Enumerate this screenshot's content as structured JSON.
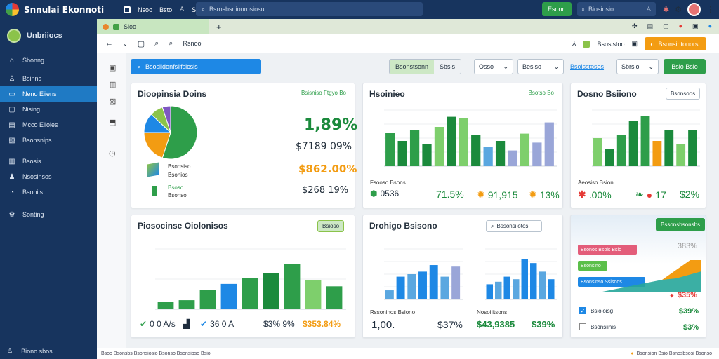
{
  "topbar": {
    "brand": "Snnulai Ekonnoti",
    "nav": [
      "Nsoo",
      "Bsto",
      "Ssbo"
    ],
    "search_placeholder": "Bsrosbsnionrosiosu",
    "green_button": "Esonn",
    "search2": "Biosiosio"
  },
  "sidebar": {
    "user": "Unbriiocs",
    "items": [
      {
        "label": "Sbonng",
        "icon": "home-icon"
      },
      {
        "label": "Bsinns",
        "icon": "user-icon"
      },
      {
        "label": "Neno Eiiens",
        "icon": "folder-icon",
        "active": true
      },
      {
        "label": "Nising",
        "icon": "chat-icon"
      },
      {
        "label": "Mcco Eiioies",
        "icon": "calendar-icon"
      },
      {
        "label": "Bsonsnips",
        "icon": "doc-icon"
      },
      {
        "label": "Bsosis",
        "icon": "chart-icon"
      },
      {
        "label": "Nsosinsos",
        "icon": "users-icon"
      },
      {
        "label": "Bsoniis",
        "icon": "bell-icon"
      },
      {
        "label": "Sonting",
        "icon": "gear-icon"
      }
    ],
    "footer": "Biono sbos"
  },
  "tabs": {
    "active": "Sioo"
  },
  "address": {
    "title": "Rsnoo",
    "ext_label": "Bsosistoo",
    "orange": "Bsonsintonors"
  },
  "toolbar": {
    "search": "Bsosiidonfsiifsicsis",
    "seg": [
      "Bsonstsonn",
      "Sbsis"
    ],
    "dd1": "Osso",
    "dd2": "Besiso",
    "link": "Bsoisstosos",
    "dd3": "Sbrsio",
    "go": "Bsio Bsio"
  },
  "cards": {
    "c1": {
      "title": "Dioopinsia Doins",
      "link": "Bsisniso Ftgyo Bo",
      "big1": "1,89%",
      "big2": "$7189 09%",
      "big3": "$862.00%",
      "big4": "$268 19%",
      "leg1a": "Bsonsiso",
      "leg1b": "Bsonios",
      "leg2a": "Bsoso",
      "leg2b": "Bsonso"
    },
    "c2": {
      "title": "Hsoinieo",
      "link": "Bsotso Bo",
      "f1": "0536",
      "f1label": "Fsooso Bsons",
      "f2": "71.5%",
      "f3": "91,915",
      "f4": "13%"
    },
    "c3": {
      "title": "Dosno Bsiiono",
      "btn": "Bsonsoos",
      "f1label": "Aeosiso Bsion",
      "f1": ".00%",
      "f2": "17",
      "f3": "$2%"
    },
    "c4": {
      "title": "Piosocinse Oiolonisos",
      "btn": "Bsioso"
    },
    "c5": {
      "title": "Drohigo Bsisono",
      "btn": "Bssonsiiotos",
      "f1label": "Rssoninos Bsiono",
      "f1": "1,00.",
      "f2": "$37%",
      "f3label": "Nosoiiitsons",
      "f3": "$43,9385",
      "f4": "$39%"
    },
    "c6": {
      "btn": "Bssonsbsonsbs",
      "p1": "Bsonos Bsois Bsio",
      "p2": "Bsonsino",
      "p3": "Bsonsinso Ssisoos",
      "v1": "383%",
      "v2": "$35%",
      "r1": "Bsioioisg",
      "r1v": "$39%",
      "r2": "Bsonsiinis",
      "r2v": "$3%"
    },
    "c4foot": {
      "a": "0 0 A/s",
      "b": "36 0 A",
      "c": "$3% 9%",
      "d": "$353.84%"
    }
  },
  "bottom": {
    "left": "Bsoo Bsonsbs Bsonsiosio Bsonso  Bsonsibso  Bsio",
    "right": "Bsonsion  Bsio Bsnosbsosi Bsonso"
  },
  "chart_data": [
    {
      "type": "pie",
      "values": [
        55,
        20,
        12,
        8,
        5
      ],
      "colors": [
        "#2e9e4a",
        "#f39c12",
        "#1e88e5",
        "#8bc34a",
        "#7e57c2"
      ]
    },
    {
      "type": "bar",
      "ylim": [
        0,
        100
      ],
      "values": [
        60,
        45,
        65,
        40,
        70,
        88,
        85,
        55,
        35,
        45,
        28,
        58,
        42,
        78
      ],
      "colors": [
        "#2e9e4a",
        "#1b8a3c",
        "#2e9e4a",
        "#1b8a3c",
        "#7ecf6c",
        "#1b8a3c",
        "#7ecf6c",
        "#1b8a3c",
        "#5aa7e0",
        "#1b8a3c",
        "#9aa6d8",
        "#7ecf6c",
        "#9aa6d8",
        "#9aa6d8"
      ]
    },
    {
      "type": "bar",
      "ylim": [
        0,
        100
      ],
      "values": [
        50,
        30,
        55,
        80,
        90,
        45,
        65,
        40,
        65
      ],
      "colors": [
        "#7ecf6c",
        "#1b8a3c",
        "#2e9e4a",
        "#1b8a3c",
        "#2e9e4a",
        "#f39c12",
        "#1b8a3c",
        "#7ecf6c",
        "#1b8a3c"
      ]
    },
    {
      "type": "bar",
      "ylim": [
        0,
        100
      ],
      "values": [
        12,
        15,
        32,
        42,
        52,
        60,
        75,
        48,
        38
      ],
      "colors": [
        "#2e9e4a",
        "#2e9e4a",
        "#2e9e4a",
        "#1e88e5",
        "#2e9e4a",
        "#1b8a3c",
        "#2e9e4a",
        "#7ecf6c",
        "#2e9e4a"
      ]
    },
    {
      "type": "bar",
      "ylim": [
        0,
        100
      ],
      "values": [
        18,
        45,
        50,
        55,
        68,
        45,
        65
      ],
      "colors": [
        "#5aa7e0",
        "#1e88e5",
        "#5aa7e0",
        "#1e88e5",
        "#1e88e5",
        "#5aa7e0",
        "#9aa6d8"
      ]
    },
    {
      "type": "bar",
      "ylim": [
        0,
        100
      ],
      "values": [
        30,
        35,
        45,
        40,
        80,
        72,
        55,
        40
      ],
      "colors": [
        "#1e88e5",
        "#5aa7e0",
        "#1e88e5",
        "#5aa7e0",
        "#1e88e5",
        "#1e88e5",
        "#5aa7e0",
        "#1e88e5"
      ]
    }
  ]
}
